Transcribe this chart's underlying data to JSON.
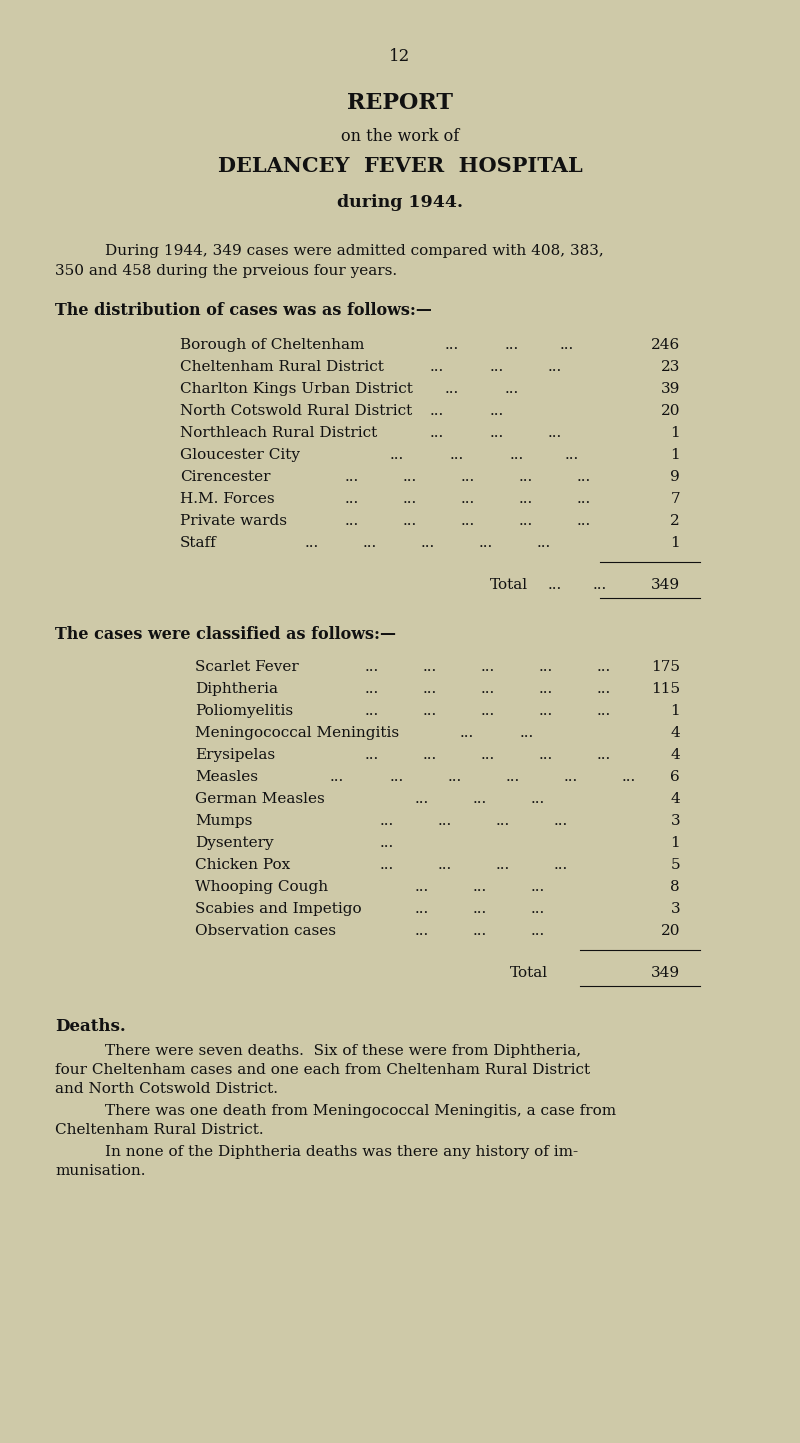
{
  "bg_color": "#cec9a8",
  "text_color": "#111111",
  "page_number": "12",
  "title_line1": "REPORT",
  "title_line2": "on the work of",
  "title_line3": "DELANCEY  FEVER  HOSPITAL",
  "title_line4": "during 1944.",
  "intro_line1": "During 1944, 349 cases were admitted compared with 408, 383,",
  "intro_line2": "350 and 458 during the prveious four years.",
  "section1_heading": "The distribution of cases was as follows:—",
  "dist_labels": [
    "Borough of Cheltenham",
    "Cheltenham Rural District",
    "Charlton Kings Urban District",
    "North Cotswold Rural District",
    "Northleach Rural District",
    "Gloucester City",
    "Cirencester",
    "H.M. Forces",
    "Private wards",
    "Staff"
  ],
  "dist_dots": [
    "...          ...          ...",
    "...       ...          ...",
    "...          ...",
    "...          ...",
    "...       ...          ...",
    "...       ...       ...          ...",
    "...    ...    ...    ...    ...",
    "...    ...    ...    ...    ...",
    "...    ...    ...    ...    ...",
    "...    ...    ...    ...    ...    ..."
  ],
  "dist_values": [
    "246",
    "23",
    "39",
    "20",
    "1",
    "1",
    "9",
    "7",
    "2",
    "1"
  ],
  "dist_total_label": "Total ... ... 349",
  "section2_heading": "The cases were classified as follows:—",
  "cases_labels": [
    "Scarlet Fever",
    "Diphtheria",
    "Poliomyelitis",
    "Meningococcal Meningitis",
    "Erysipelas",
    "Measles",
    "German Measles",
    "Mumps",
    "Dysentery",
    "Chicken Pox",
    "Whooping Cough",
    "Scabies and Impetigo",
    "Observation cases"
  ],
  "cases_dots": [
    "...    ...    ...    ...    ...",
    "...    ...    ...    ...    ...",
    "...    ...    ...    ...    ...",
    "...    ...",
    "...    ...    ...    ...    ...",
    "...    ...    ...    ...    ...    ...",
    "...    ...    ...",
    "...    ...    ...    ...",
    "...",
    "...    ...    ...    ...",
    "...    ...    ...",
    "...    ...    ...",
    "...    ...    ..."
  ],
  "cases_values": [
    "175",
    "115",
    "1",
    "4",
    "4",
    "6",
    "4",
    "3",
    "1",
    "5",
    "8",
    "3",
    "20"
  ],
  "cases_total": "349",
  "deaths_heading": "Deaths.",
  "deaths_para1a": "There were seven deaths.  Six of these were from Diphtheria,",
  "deaths_para1b": "four Cheltenham cases and one each from Cheltenham Rural District",
  "deaths_para1c": "and North Cotswold District.",
  "deaths_para2a": "There was one death from Meningococcal Meningitis, a case from",
  "deaths_para2b": "Cheltenham Rural District.",
  "deaths_para3a": "In none of the Diphtheria deaths was there any history of im-",
  "deaths_para3b": "munisation."
}
